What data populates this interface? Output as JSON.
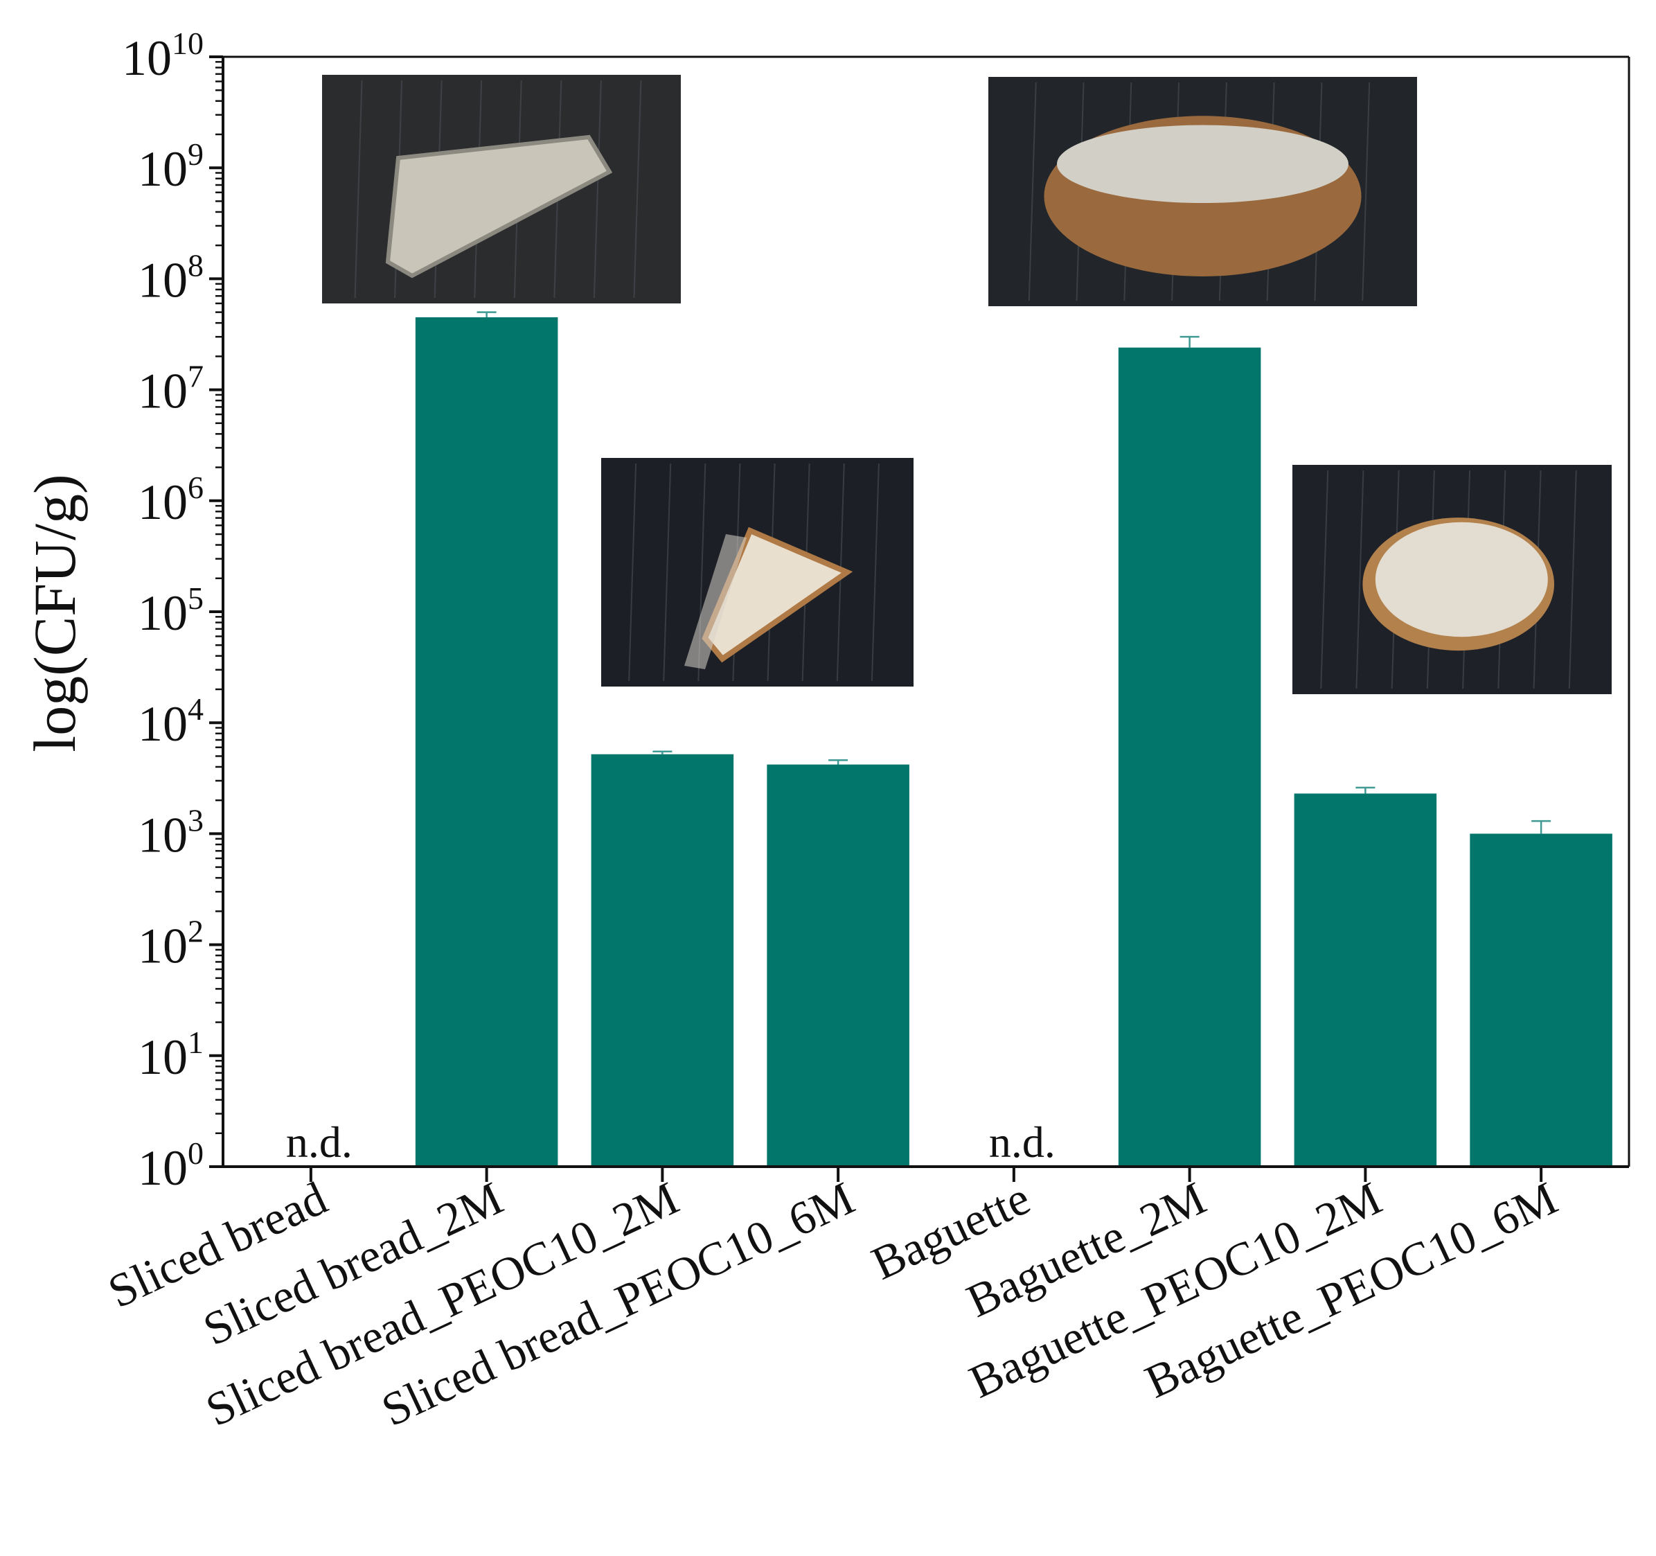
{
  "chart_data": {
    "type": "bar",
    "ylabel": "log(CFU/g)",
    "yscale": "log",
    "ylim": [
      1,
      10000000000
    ],
    "yticks": [
      {
        "value": 1,
        "base": "10",
        "exp": "0"
      },
      {
        "value": 10,
        "base": "10",
        "exp": "1"
      },
      {
        "value": 100,
        "base": "10",
        "exp": "2"
      },
      {
        "value": 1000,
        "base": "10",
        "exp": "3"
      },
      {
        "value": 10000,
        "base": "10",
        "exp": "4"
      },
      {
        "value": 100000,
        "base": "10",
        "exp": "5"
      },
      {
        "value": 1000000,
        "base": "10",
        "exp": "6"
      },
      {
        "value": 10000000,
        "base": "10",
        "exp": "7"
      },
      {
        "value": 100000000,
        "base": "10",
        "exp": "8"
      },
      {
        "value": 1000000000,
        "base": "10",
        "exp": "9"
      },
      {
        "value": 10000000000,
        "base": "10",
        "exp": "10"
      }
    ],
    "categories": [
      "Sliced bread",
      "Sliced bread_2M",
      "Sliced bread_PEOC10_2M",
      "Sliced bread_PEOC10_6M",
      "Baguette",
      "Baguette_2M",
      "Baguette_PEOC10_2M",
      "Baguette_PEOC10_6M"
    ],
    "values": [
      null,
      45000000,
      5200.0,
      4200,
      null,
      24000000,
      2300,
      1000
    ],
    "errors": [
      null,
      5000000,
      300,
      400,
      null,
      6000000,
      300,
      300
    ],
    "annotations": [
      "n.d.",
      null,
      null,
      null,
      "n.d.",
      null,
      null,
      null
    ],
    "bar_color": "#02766B",
    "insets": [
      {
        "name": "sliced-bread-2m-photo",
        "crust": "#8c8a80",
        "crumb": "#c9c5b8",
        "bg": "#2b2c2e",
        "shape": "wedge-side"
      },
      {
        "name": "sliced-bread-peoc10-photo",
        "crust": "#b07a46",
        "crumb": "#e8dfcf",
        "bg": "#1c2026",
        "shape": "wedge-top"
      },
      {
        "name": "baguette-2m-photo",
        "crust": "#9a6a3e",
        "crumb": "#d2cfc6",
        "bg": "#22262b",
        "shape": "loaf-side"
      },
      {
        "name": "baguette-peoc10-photo",
        "crust": "#b3814c",
        "crumb": "#e3dcd0",
        "bg": "#1e2228",
        "shape": "slice-top"
      }
    ]
  }
}
